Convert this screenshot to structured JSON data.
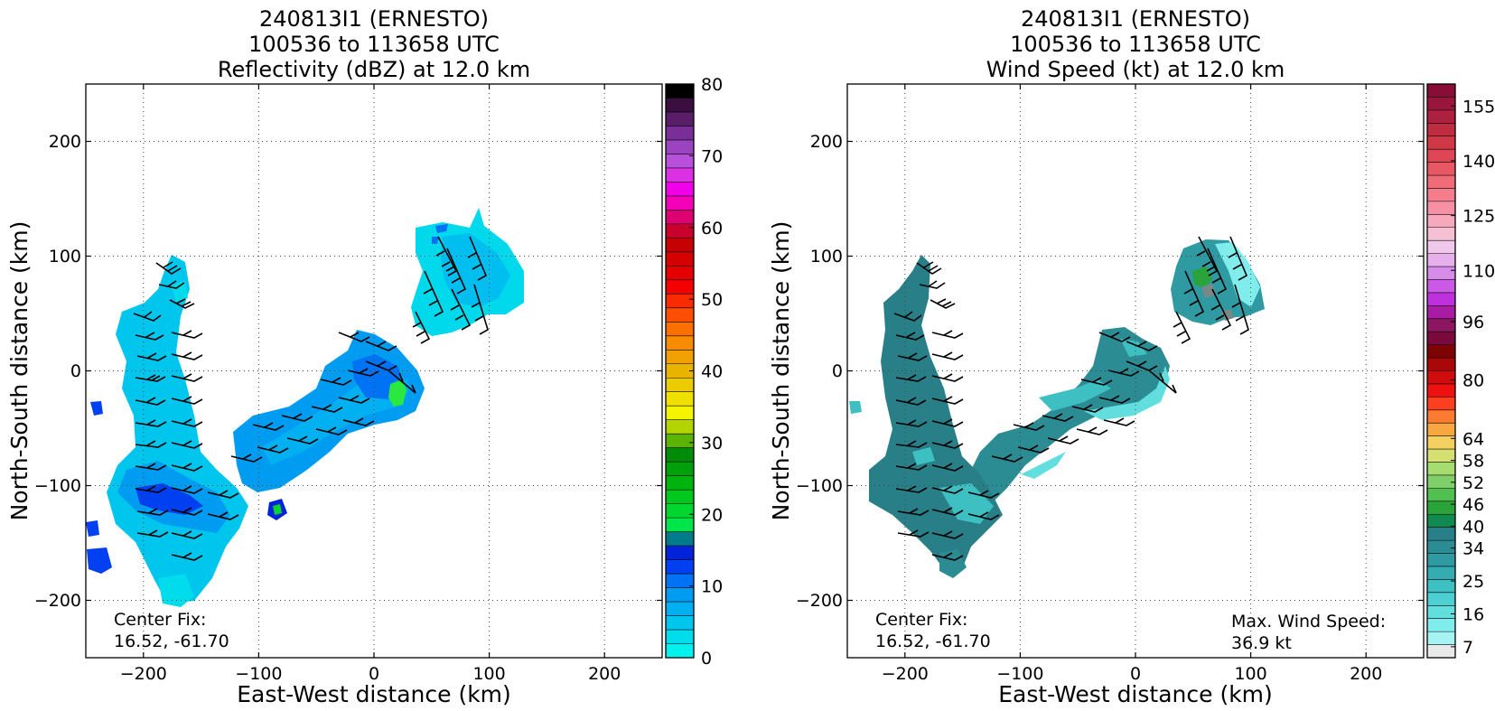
{
  "panels": [
    {
      "title_lines": [
        "240813I1 (ERNESTO)",
        "100536 to 113658 UTC",
        "Reflectivity (dBZ) at 12.0 km"
      ],
      "xlabel": "East-West distance (km)",
      "ylabel": "North-South distance (km)",
      "center_fix_label": "Center Fix:",
      "center_fix_value": "16.52, -61.70",
      "note_label": "",
      "note_value": ""
    },
    {
      "title_lines": [
        "240813I1 (ERNESTO)",
        "100536 to 113658 UTC",
        "Wind Speed (kt) at 12.0 km"
      ],
      "xlabel": "East-West distance (km)",
      "ylabel": "North-South distance (km)",
      "center_fix_label": "Center Fix:",
      "center_fix_value": "16.52, -61.70",
      "note_label": "Max. Wind Speed:",
      "note_value": "36.9 kt"
    }
  ],
  "colorbars": [
    {
      "tick_labels": [
        "0",
        "10",
        "20",
        "30",
        "40",
        "50",
        "60",
        "70",
        "80"
      ],
      "tick_values": [
        0,
        10,
        20,
        30,
        40,
        50,
        60,
        70,
        80
      ],
      "range": [
        0,
        80
      ],
      "colors": [
        "#00f2ee",
        "#00dcec",
        "#00c6ee",
        "#00b0f0",
        "#009cf2",
        "#0072f4",
        "#0040f0",
        "#0022d8",
        "#007b8c",
        "#00e64a",
        "#00d62e",
        "#00c81c",
        "#00b40e",
        "#00a00a",
        "#008c08",
        "#5ab400",
        "#b4d400",
        "#f4f400",
        "#f0e000",
        "#eccc00",
        "#e8b400",
        "#f0a000",
        "#f88c00",
        "#fc7000",
        "#fc5000",
        "#f82c00",
        "#f40000",
        "#e40000",
        "#d40000",
        "#c40000",
        "#c8002c",
        "#dc0070",
        "#f400b8",
        "#f000e8",
        "#dc30e4",
        "#b850dc",
        "#9a44c0",
        "#7a2e98",
        "#5a1e68",
        "#3a0e3e",
        "#000000"
      ]
    },
    {
      "tick_labels": [
        "7",
        "16",
        "25",
        "34",
        "40",
        "46",
        "52",
        "58",
        "64",
        "80",
        "96",
        "110",
        "125",
        "140",
        "155"
      ],
      "tick_values": [
        7,
        16,
        25,
        34,
        40,
        46,
        52,
        58,
        64,
        80,
        96,
        110,
        125,
        140,
        155
      ],
      "range": [
        4,
        161
      ],
      "colors": [
        "#e9e9e9",
        "#a6f3f3",
        "#80ecec",
        "#63dede",
        "#4ecfd1",
        "#3ec0c3",
        "#35acb2",
        "#2f9aa2",
        "#2c8c94",
        "#297f88",
        "#118a50",
        "#2aa43a",
        "#50c050",
        "#7fd06a",
        "#a6dc70",
        "#d6e070",
        "#f4d060",
        "#f8a840",
        "#fb7b30",
        "#fb4020",
        "#ef1010",
        "#d00c0c",
        "#a80808",
        "#7e0404",
        "#7a0a3c",
        "#8c1660",
        "#a81ca4",
        "#be30dc",
        "#cc58e6",
        "#d88cea",
        "#e6b0ec",
        "#f0c8ec",
        "#f6c0d4",
        "#f6a8bc",
        "#f690a4",
        "#f47c8c",
        "#f06c78",
        "#e85864",
        "#de4654",
        "#d03848",
        "#c02c40",
        "#ac2040",
        "#98163c",
        "#880e38"
      ]
    }
  ],
  "chart_data": [
    {
      "type": "heatmap",
      "title": "240813I1 (ERNESTO) 100536 to 113658 UTC Reflectivity (dBZ) at 12.0 km",
      "xlabel": "East-West distance (km)",
      "ylabel": "North-South distance (km)",
      "xlim": [
        -250,
        250
      ],
      "ylim": [
        -250,
        250
      ],
      "xticks": [
        -200,
        -100,
        0,
        100,
        200
      ],
      "yticks": [
        -200,
        -100,
        0,
        100,
        200
      ],
      "grid": true,
      "colorbar_label": "dBZ",
      "colorbar_range": [
        0,
        80
      ],
      "center_fix": [
        16.52,
        -61.7
      ],
      "echo_regions": [
        {
          "name": "northeast band",
          "x": [
            35,
            130
          ],
          "y": [
            30,
            145
          ],
          "dBZ": [
            0,
            8
          ]
        },
        {
          "name": "central band",
          "x": [
            -120,
            40
          ],
          "y": [
            -110,
            45
          ],
          "dBZ": [
            2,
            10
          ],
          "peak_dBZ": 25,
          "peak_at": [
            22,
            -20
          ]
        },
        {
          "name": "western arm",
          "x": [
            -225,
            -145
          ],
          "y": [
            -210,
            95
          ],
          "dBZ": [
            2,
            14
          ],
          "peak_dBZ": 22
        },
        {
          "name": "southern embedded cell",
          "x": [
            -92,
            -82
          ],
          "y": [
            -125,
            -115
          ],
          "dBZ": [
            10,
            24
          ]
        }
      ]
    },
    {
      "type": "heatmap",
      "title": "240813I1 (ERNESTO) 100536 to 113658 UTC Wind Speed (kt) at 12.0 km",
      "xlabel": "East-West distance (km)",
      "ylabel": "North-South distance (km)",
      "xlim": [
        -250,
        250
      ],
      "ylim": [
        -250,
        250
      ],
      "xticks": [
        -200,
        -100,
        0,
        100,
        200
      ],
      "yticks": [
        -200,
        -100,
        0,
        100,
        200
      ],
      "grid": true,
      "colorbar_label": "kt",
      "colorbar_range": [
        4,
        161
      ],
      "center_fix": [
        16.52,
        -61.7
      ],
      "max_wind_speed_kt": 36.9,
      "wind_regions": [
        {
          "name": "northeast band",
          "x": [
            35,
            115
          ],
          "y": [
            30,
            110
          ],
          "kt": [
            18,
            34
          ],
          "peak_kt": 36.9
        },
        {
          "name": "central band",
          "x": [
            -130,
            40
          ],
          "y": [
            -130,
            45
          ],
          "kt": [
            18,
            28
          ]
        },
        {
          "name": "western arm",
          "x": [
            -230,
            -145
          ],
          "y": [
            -195,
            100
          ],
          "kt": [
            22,
            28
          ]
        }
      ]
    }
  ]
}
